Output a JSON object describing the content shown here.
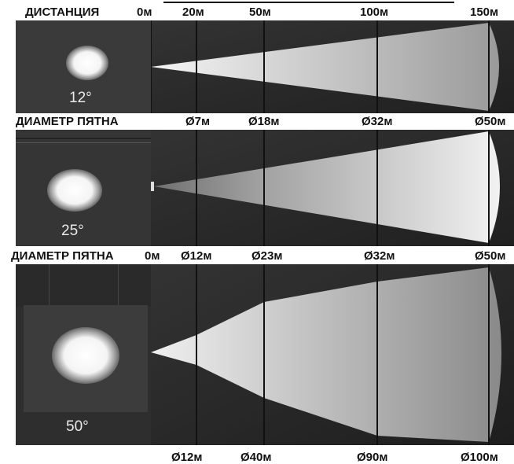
{
  "header": {
    "distance_title": "ДИСТАНЦИЯ",
    "distances": [
      "0м",
      "20м",
      "50м",
      "100м",
      "150м"
    ]
  },
  "rows": [
    {
      "angle": "12°",
      "diameter_title": "ДИАМЕТР ПЯТНА",
      "diameters": [
        "Ø7м",
        "Ø18м",
        "Ø32м",
        "Ø50м"
      ]
    },
    {
      "angle": "25°",
      "diameter_title": "ДИАМЕТР ПЯТНА",
      "zero_label": "0м",
      "diameters": [
        "Ø12м",
        "Ø23м",
        "Ø32м",
        "Ø50м"
      ]
    },
    {
      "angle": "50°",
      "diameters": [
        "Ø12м",
        "Ø40м",
        "Ø90м",
        "Ø100м"
      ]
    }
  ]
}
